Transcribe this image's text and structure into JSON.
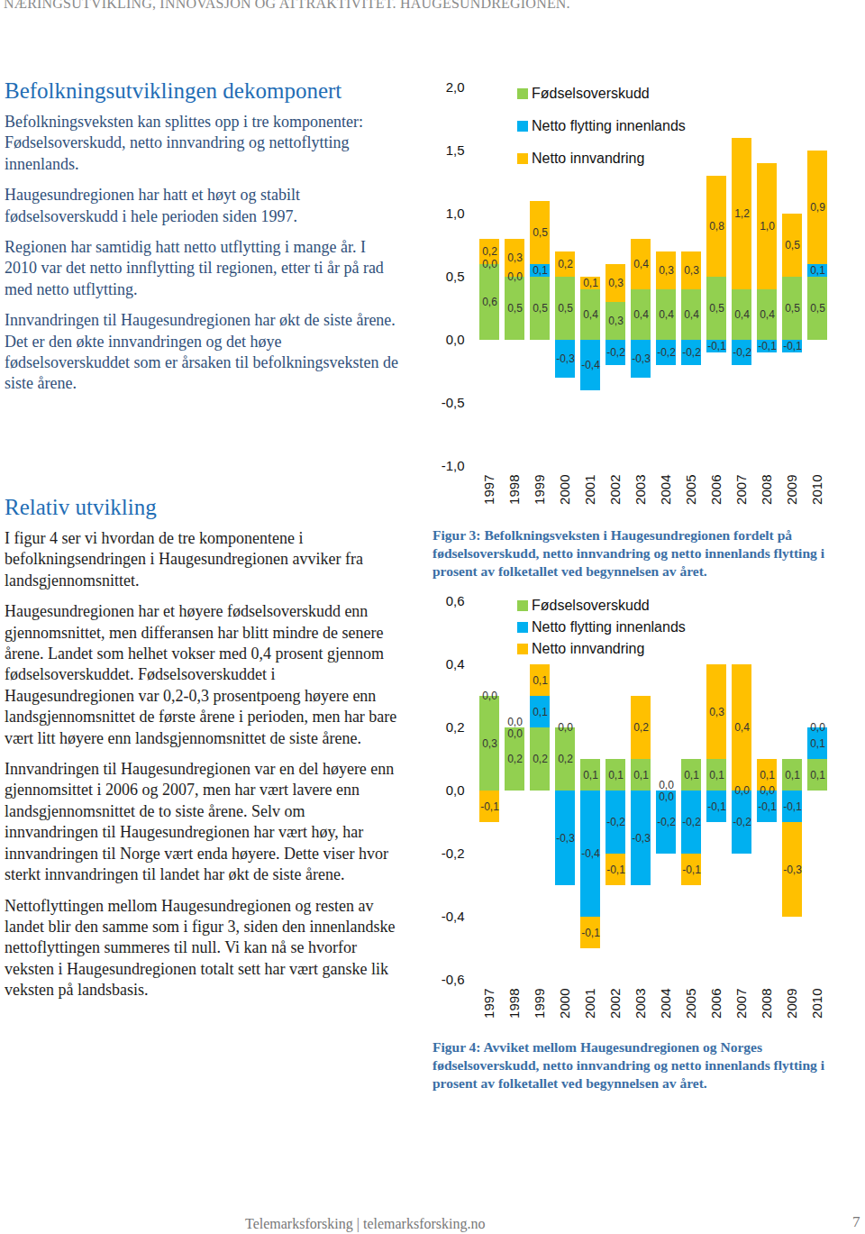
{
  "header": "NÆRINGSUTVIKLING, INNOVASJON OG ATTRAKTIVITET. HAUGESUNDREGIONEN.",
  "sections": [
    {
      "heading": "Befolkningsutviklingen dekomponert",
      "paragraphs": [
        "Befolkningsveksten kan splittes opp i tre komponenter: Fødselsoverskudd, netto innvandring og nettoflytting innenlands.",
        "Haugesundregionen har hatt et høyt og stabilt fødselsoverskudd i hele perioden siden 1997.",
        "Regionen har samtidig hatt netto utflytting i mange år. I 2010 var det netto innflytting til regionen, etter ti år på rad med netto utflytting.",
        "Innvandringen til Haugesundregionen har økt de siste årene. Det er den økte innvandringen og det høye fødselsoverskuddet som er årsaken til befolkningsveksten de siste årene."
      ]
    },
    {
      "heading": "Relativ utvikling",
      "paragraphs": [
        "I figur 4 ser vi hvordan de tre komponentene i befolkningsendringen i Haugesundregionen avviker fra landsgjennomsnittet.",
        "Haugesundregionen har et høyere fødselsoverskudd enn gjennomsnittet, men differansen har blitt mindre de senere årene. Landet som helhet vokser med 0,4 prosent gjennom fødselsoverskuddet. Fødselsoverskuddet i Haugesundregionen var 0,2-0,3 prosentpoeng høyere enn landsgjennomsnittet de første årene i perioden, men har bare vært litt høyere enn landsgjennomsnittet de siste årene.",
        "Innvandringen til Haugesundregionen var en del høyere enn gjennomsittet i 2006 og 2007, men har vært lavere enn landsgjennomsnittet de to siste årene. Selv om innvandringen til Haugesundregionen har vært høy, har innvandringen til Norge vært enda høyere. Dette viser hvor sterkt innvandringen til landet har økt de siste årene.",
        "Nettoflyttingen mellom Haugesundregionen og resten av landet blir den samme som i figur 3, siden den innenlandske nettoflyttingen summeres til null. Vi kan nå se hvorfor veksten i Haugesundregionen totalt sett har vært ganske lik veksten på landsbasis."
      ]
    }
  ],
  "chart_data": [
    {
      "type": "bar",
      "title": "Figur 3: Befolkningsveksten i Haugesundregionen fordelt på fødselsoverskudd, netto innvandring og netto innenlands flytting i prosent av folketallet ved begynnelsen av året.",
      "stacked": true,
      "data_labels": true,
      "grid": false,
      "legend": "top-left",
      "categories": [
        "1997",
        "1998",
        "1999",
        "2000",
        "2001",
        "2002",
        "2003",
        "2004",
        "2005",
        "2006",
        "2007",
        "2008",
        "2009",
        "2010"
      ],
      "ylim": [
        -1.0,
        2.0
      ],
      "yticks": [
        {
          "value": -1.0,
          "label": "-1,0"
        },
        {
          "value": -0.5,
          "label": "-0,5"
        },
        {
          "value": 0,
          "label": "0,0"
        },
        {
          "value": 0.5,
          "label": "0,5"
        },
        {
          "value": 1.0,
          "label": "1,0"
        },
        {
          "value": 1.5,
          "label": "1,5"
        },
        {
          "value": 2.0,
          "label": "2,0"
        }
      ],
      "series": [
        {
          "name": "Fødselsoverskudd",
          "color": "#92d050",
          "values": [
            0.6,
            0.5,
            0.5,
            0.5,
            0.4,
            0.3,
            0.4,
            0.4,
            0.4,
            0.5,
            0.4,
            0.4,
            0.5,
            0.5
          ],
          "value_labels": [
            "0,6",
            "0,5",
            "0,5",
            "0,5",
            "0,4",
            "0,3",
            "0,4",
            "0,4",
            "0,4",
            "0,5",
            "0,4",
            "0,4",
            "0,5",
            "0,5"
          ]
        },
        {
          "name": "Netto flytting innenlands",
          "color": "#00b0f0",
          "values": [
            0.0,
            0.0,
            0.1,
            -0.3,
            -0.4,
            -0.2,
            -0.3,
            -0.2,
            -0.2,
            -0.1,
            -0.2,
            -0.1,
            -0.1,
            0.1
          ],
          "value_labels": [
            "0,0",
            "0,0",
            "0,1",
            "-0,3",
            "-0,4",
            "-0,2",
            "-0,3",
            "-0,2",
            "-0,2",
            "-0,1",
            "-0,2",
            "-0,1",
            "-0,1",
            "0,1"
          ]
        },
        {
          "name": "Netto innvandring",
          "color": "#ffc000",
          "values": [
            0.2,
            0.3,
            0.5,
            0.2,
            0.1,
            0.3,
            0.4,
            0.3,
            0.3,
            0.8,
            1.2,
            1.0,
            0.5,
            0.9
          ],
          "value_labels": [
            "0,2",
            "0,3",
            "0,5",
            "0,2",
            "0,1",
            "0,3",
            "0,4",
            "0,3",
            "0,3",
            "0,8",
            "1,2",
            "1,0",
            "0,5",
            "0,9"
          ]
        }
      ]
    },
    {
      "type": "bar",
      "title": "Figur 4: Avviket mellom Haugesundregionen og Norges fødselsoverskudd, netto innvandring og netto innenlands flytting i prosent av folketallet ved begynnelsen av året.",
      "stacked": true,
      "data_labels": true,
      "grid": false,
      "legend": "top-left",
      "categories": [
        "1997",
        "1998",
        "1999",
        "2000",
        "2001",
        "2002",
        "2003",
        "2004",
        "2005",
        "2006",
        "2007",
        "2008",
        "2009",
        "2010"
      ],
      "ylim": [
        -0.6,
        0.6
      ],
      "yticks": [
        {
          "value": -0.6,
          "label": "-0,6"
        },
        {
          "value": -0.4,
          "label": "-0,4"
        },
        {
          "value": -0.2,
          "label": "-0,2"
        },
        {
          "value": 0,
          "label": "0,0"
        },
        {
          "value": 0.2,
          "label": "0,2"
        },
        {
          "value": 0.4,
          "label": "0,4"
        },
        {
          "value": 0.6,
          "label": "0,6"
        }
      ],
      "series": [
        {
          "name": "Fødselsoverskudd",
          "color": "#92d050",
          "values": [
            0.3,
            0.2,
            0.2,
            0.2,
            0.1,
            0.1,
            0.1,
            0.0,
            0.1,
            0.1,
            0.0,
            0.0,
            0.1,
            0.1
          ],
          "value_labels": [
            "0,3",
            "0,2",
            "0,2",
            "0,2",
            "0,1",
            "0,1",
            "0,1",
            "0,0",
            "0,1",
            "0,1",
            "0,0",
            "0,0",
            "0,1",
            "0,1"
          ]
        },
        {
          "name": "Netto flytting innenlands",
          "color": "#00b0f0",
          "values": [
            0.0,
            0.0,
            0.1,
            -0.3,
            -0.4,
            -0.2,
            -0.3,
            -0.2,
            -0.2,
            -0.1,
            -0.2,
            -0.1,
            -0.1,
            0.1
          ],
          "value_labels": [
            "0,0",
            "0,0",
            "0,1",
            "-0,3",
            "-0,4",
            "-0,2",
            "-0,3",
            "-0,2",
            "-0,2",
            "-0,1",
            "-0,2",
            "-0,1",
            "-0,1",
            "0,1"
          ]
        },
        {
          "name": "Netto innvandring",
          "color": "#ffc000",
          "values": [
            -0.1,
            0.0,
            0.1,
            0.0,
            -0.1,
            -0.1,
            0.2,
            0.0,
            -0.1,
            0.3,
            0.4,
            0.1,
            -0.3,
            0.0
          ],
          "value_labels": [
            "-0,1",
            "0,0",
            "0,1",
            "0,0",
            "-0,1",
            "-0,1",
            "0,2",
            "0,0",
            "-0,1",
            "0,3",
            "0,4",
            "0,1",
            "-0,3",
            "0,0"
          ]
        }
      ]
    }
  ],
  "footer": {
    "text": "Telemarksforsking | telemarksforsking.no",
    "page": 7
  }
}
